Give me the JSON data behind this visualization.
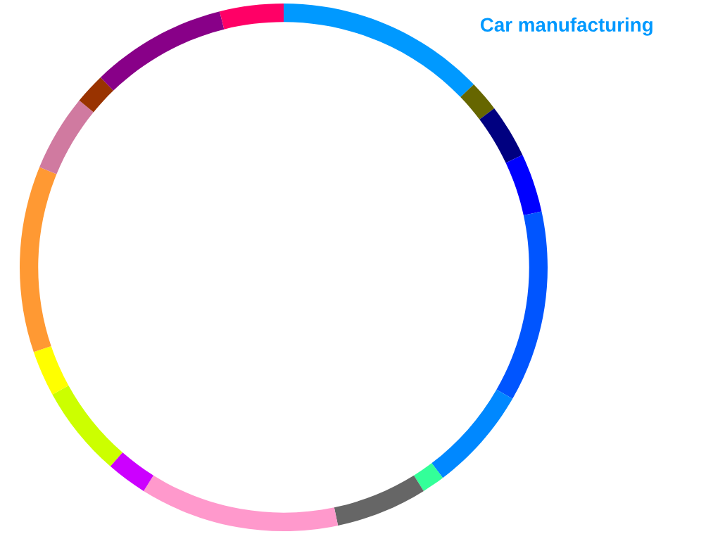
{
  "chart_data": {
    "type": "donut",
    "categories": [
      "Car manufacturing",
      null,
      null,
      null,
      null,
      null,
      null,
      null,
      null,
      null,
      null,
      null,
      null,
      null,
      null,
      null,
      null
    ],
    "values": [
      12.8,
      1.9,
      3.3,
      3.6,
      11.7,
      6.4,
      1.4,
      5.6,
      12.2,
      2.5,
      5.6,
      2.8,
      11.4,
      4.7,
      1.9,
      8.3,
      3.9
    ],
    "colors": [
      "#0099ff",
      "#666600",
      "#000080",
      "#0000ff",
      "#0055ff",
      "#0088ff",
      "#33ff99",
      "#666666",
      "#ff99cc",
      "#cc00ff",
      "#ccff00",
      "#ffff00",
      "#ff9933",
      "#d07aa0",
      "#993300",
      "#880088",
      "#ff0066"
    ]
  }
}
